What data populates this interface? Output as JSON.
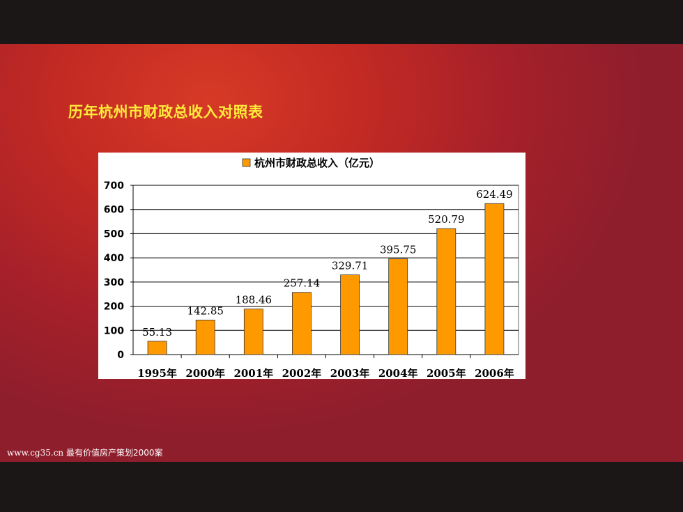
{
  "slide": {
    "title": "历年杭州市财政总收入对照表",
    "watermark_url": "www.cg35.cn",
    "watermark_text": "最有价值房产策划2000案"
  },
  "chart_data": {
    "type": "bar",
    "categories": [
      "1995年",
      "2000年",
      "2001年",
      "2002年",
      "2003年",
      "2004年",
      "2005年",
      "2006年"
    ],
    "series": [
      {
        "name": "杭州市财政总收入（亿元）",
        "values": [
          55.13,
          142.85,
          188.46,
          257.14,
          329.71,
          395.75,
          520.79,
          624.49
        ],
        "labels": [
          "55.13",
          "142.85",
          "188.46",
          "257.14",
          "329.71",
          "395.75",
          "520.79",
          "624.49"
        ]
      }
    ],
    "ylim": [
      0,
      700
    ],
    "yticks": [
      "0",
      "100",
      "200",
      "300",
      "400",
      "500",
      "600",
      "700"
    ],
    "ytick_values": [
      0,
      100,
      200,
      300,
      400,
      500,
      600,
      700
    ],
    "grid": true,
    "legend_position": "top-center",
    "colors": {
      "bar": "#ff9900",
      "bar_stroke": "#333333",
      "grid": "#000000",
      "title": "#ffec3a"
    }
  }
}
